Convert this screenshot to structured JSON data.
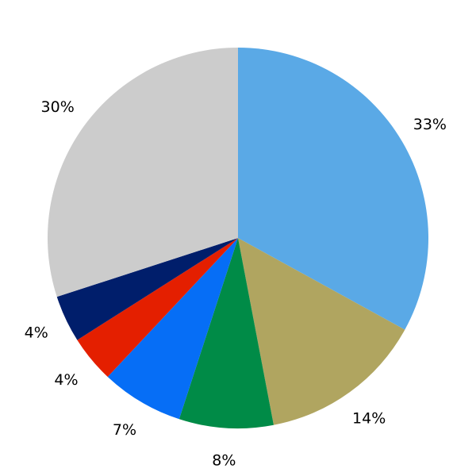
{
  "chart_data": {
    "type": "pie",
    "start_angle": "top",
    "direction": "clockwise",
    "slices": [
      {
        "value": 33,
        "label": "33%",
        "color": "#5AA9E6"
      },
      {
        "value": 14,
        "label": "14%",
        "color": "#B0A560"
      },
      {
        "value": 8,
        "label": "8%",
        "color": "#008B47"
      },
      {
        "value": 7,
        "label": "7%",
        "color": "#066EF6"
      },
      {
        "value": 4,
        "label": "4%",
        "color": "#E41F00"
      },
      {
        "value": 4,
        "label": "4%",
        "color": "#001E6B"
      },
      {
        "value": 30,
        "label": "30%",
        "color": "#CCCCCC"
      }
    ]
  }
}
